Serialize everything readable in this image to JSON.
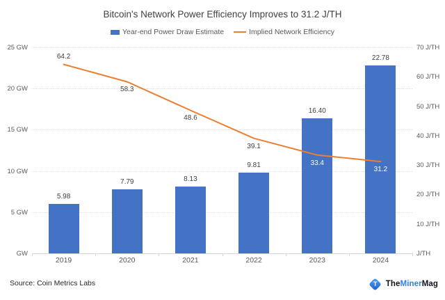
{
  "title": "Bitcoin's Network Power Efficiency Improves to 31.2 J/TH",
  "legend": {
    "bar_label": "Year-end Power Draw Estimate",
    "line_label": "Implied Network Efficiency"
  },
  "source": "Source: Coin Metrics Labs",
  "logo": {
    "monogram": "T",
    "part1": "The",
    "part2": "Miner",
    "part3": "Mag"
  },
  "colors": {
    "bar": "#4472C4",
    "line": "#ED7D31",
    "label_dark": "#404040",
    "label_light": "#FFFFFF",
    "logo_blue": "#2F80ED",
    "logo_gradient_light": "#56A2EE",
    "logo_gradient_dark": "#1B5FD0"
  },
  "chart_data": {
    "type": "bar+line combo",
    "categories": [
      "2019",
      "2020",
      "2021",
      "2022",
      "2023",
      "2024"
    ],
    "series": [
      {
        "name": "Year-end Power Draw Estimate",
        "type": "bar",
        "axis": "left",
        "unit": "GW",
        "values": [
          5.98,
          7.79,
          8.13,
          9.81,
          16.4,
          22.78
        ],
        "labels": [
          "5.98",
          "7.79",
          "8.13",
          "9.81",
          "16.40",
          "22.78"
        ]
      },
      {
        "name": "Implied Network Efficiency",
        "type": "line",
        "axis": "right",
        "unit": "J/TH",
        "values": [
          64.2,
          58.3,
          48.6,
          39.1,
          33.4,
          31.2
        ],
        "labels": [
          "64.2",
          "58.3",
          "48.6",
          "39.1",
          "33.4",
          "31.2"
        ],
        "label_positions": [
          "above",
          "below",
          "below",
          "below",
          "below",
          "below"
        ]
      }
    ],
    "left_axis": {
      "tick_labels": [
        "25 GW",
        "20 GW",
        "15 GW",
        "10 GW",
        "5 GW",
        "GW"
      ],
      "min": 0,
      "max": 25
    },
    "right_axis": {
      "tick_labels": [
        "70 J/TH",
        "60 J/TH",
        "50 J/TH",
        "40 J/TH",
        "30 J/TH",
        "20 J/TH",
        "10 J/TH",
        "J/TH"
      ],
      "min": 0,
      "max": 70
    },
    "grid": "horizontal dotted, left-axis intervals",
    "legend_position": "top center"
  }
}
